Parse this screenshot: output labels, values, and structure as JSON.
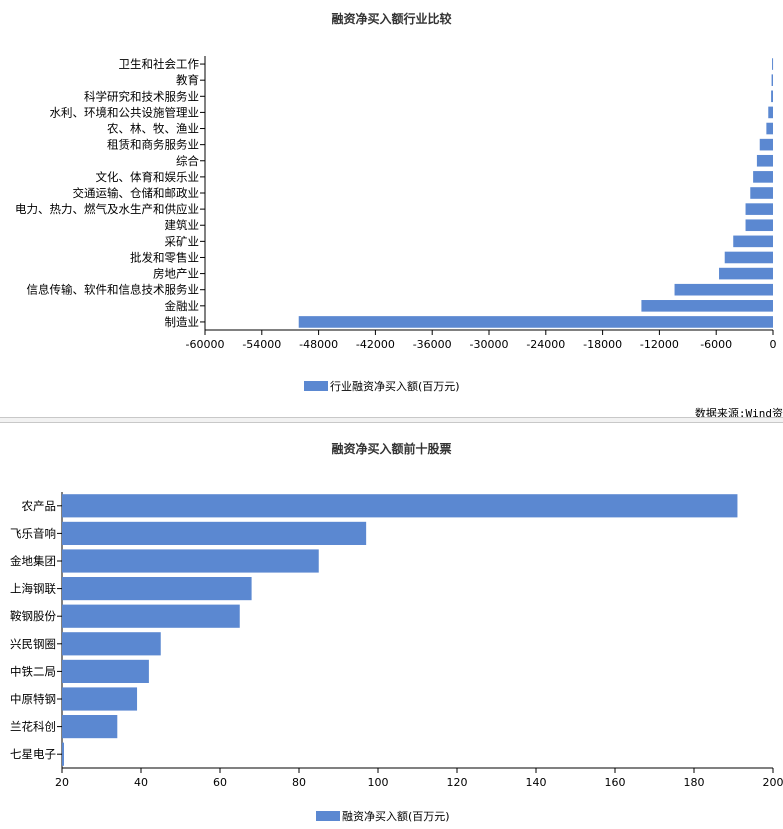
{
  "chart1": {
    "title": "融资净买入额行业比较",
    "legend_label": "行业融资净买入额(百万元)",
    "source": "数据来源:Wind资"
  },
  "chart2": {
    "title": "融资净买入额前十股票",
    "legend_label": "融资净买入额(百万元)"
  },
  "colors": {
    "bar": "#5b88d1"
  },
  "chart_data": [
    {
      "type": "bar",
      "orientation": "horizontal",
      "title": "融资净买入额行业比较",
      "categories": [
        "卫生和社会工作",
        "教育",
        "科学研究和技术服务业",
        "水利、环境和公共设施管理业",
        "农、林、牧、渔业",
        "租赁和商务服务业",
        "综合",
        "文化、体育和娱乐业",
        "交通运输、仓储和邮政业",
        "电力、热力、燃气及水生产和供应业",
        "建筑业",
        "采矿业",
        "批发和零售业",
        "房地产业",
        "信息传输、软件和信息技术服务业",
        "金融业",
        "制造业"
      ],
      "series": [
        {
          "name": "行业融资净买入额(百万元)",
          "values": [
            -100,
            -150,
            -200,
            -500,
            -700,
            -1400,
            -1700,
            -2100,
            -2400,
            -2900,
            -2900,
            -4200,
            -5100,
            -5700,
            -10400,
            -13900,
            -50100
          ]
        }
      ],
      "xlim": [
        -60000,
        0
      ],
      "xticks": [
        -60000,
        -54000,
        -48000,
        -42000,
        -36000,
        -30000,
        -24000,
        -18000,
        -12000,
        -6000,
        0
      ]
    },
    {
      "type": "bar",
      "orientation": "horizontal",
      "title": "融资净买入额前十股票",
      "categories": [
        "农产品",
        "飞乐音响",
        "金地集团",
        "上海钢联",
        "鞍钢股份",
        "兴民钢圈",
        "中铁二局",
        "中原特钢",
        "兰花科创",
        "七星电子"
      ],
      "series": [
        {
          "name": "融资净买入额(百万元)",
          "values": [
            191,
            97,
            85,
            68,
            65,
            45,
            42,
            39,
            34,
            20.5
          ]
        }
      ],
      "xlim": [
        20,
        200
      ],
      "xticks": [
        20,
        40,
        60,
        80,
        100,
        120,
        140,
        160,
        180,
        200
      ]
    }
  ]
}
